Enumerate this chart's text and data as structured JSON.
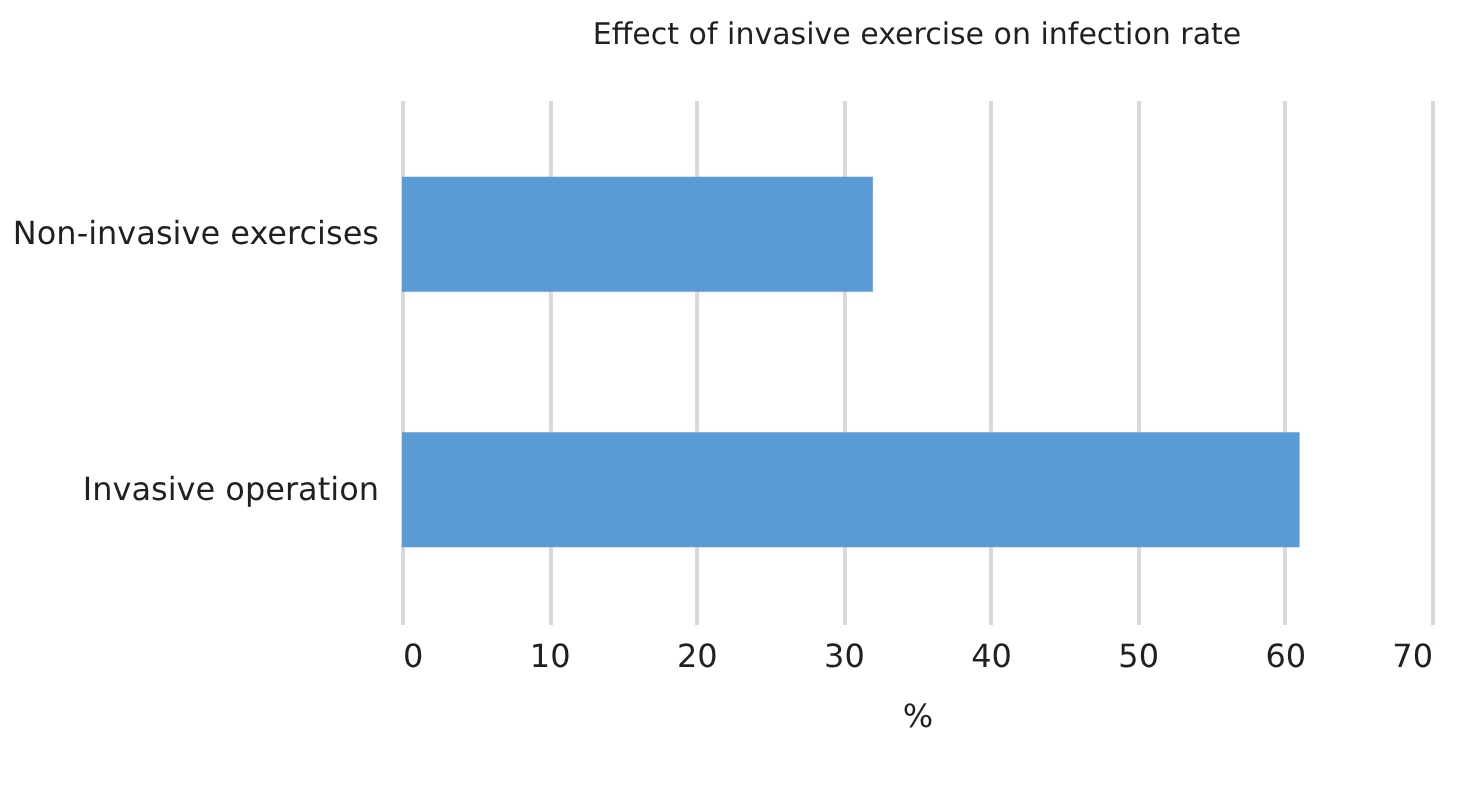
{
  "chart_data": {
    "type": "bar",
    "orientation": "horizontal",
    "title": "Effect of invasive exercise on infection rate",
    "xlabel": "%",
    "categories": [
      "Non-invasive exercises",
      "Invasive operation"
    ],
    "values": [
      32,
      61
    ],
    "color": "#5b9bd5",
    "xlim": [
      0,
      70
    ],
    "xticks": [
      0,
      10,
      20,
      30,
      40,
      50,
      60,
      70
    ],
    "grid": "x"
  }
}
